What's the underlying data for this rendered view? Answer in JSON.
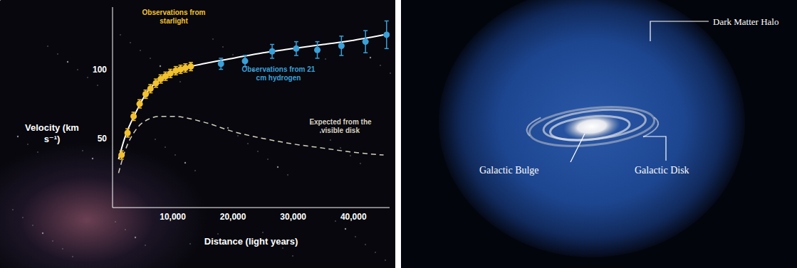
{
  "chart_data": {
    "type": "line",
    "x_label": "Distance (light years)",
    "y_label": "Velocity (km s⁻¹)",
    "xlim": [
      0,
      46000
    ],
    "xticks": [
      {
        "value": 10000,
        "label": "10,000"
      },
      {
        "value": 20000,
        "label": "20,000"
      },
      {
        "value": 30000,
        "label": "30,000"
      },
      {
        "value": 40000,
        "label": "40,000"
      }
    ],
    "ylim": [
      0,
      145
    ],
    "yticks": [
      50,
      100
    ],
    "grid": false,
    "series": [
      {
        "name": "Observations from starlight",
        "type": "scatter",
        "color": "#f2c12e",
        "x": [
          1500,
          2500,
          3500,
          4500,
          5500,
          6300,
          7200,
          8000,
          8800,
          9600,
          10500,
          11300,
          12100,
          13000
        ],
        "values": [
          38,
          54,
          66,
          75,
          82,
          86,
          90,
          93,
          95,
          97,
          99,
          100,
          101,
          102
        ],
        "errors": [
          3,
          3,
          3,
          3,
          3,
          3,
          3,
          3,
          3,
          3,
          3,
          3,
          3,
          3
        ]
      },
      {
        "name": "Observations from 21 cm hydrogen",
        "type": "scatter",
        "color": "#3aa0d8",
        "x": [
          18000,
          22000,
          26500,
          30500,
          34000,
          38000,
          42000,
          45500
        ],
        "values": [
          104,
          106,
          113,
          115,
          114,
          117,
          120,
          125
        ],
        "errors": [
          4,
          4,
          5,
          5,
          6,
          7,
          8,
          10
        ]
      },
      {
        "type": "line",
        "color": "#ffffff",
        "line_style": "solid",
        "x": [
          1000,
          2000,
          4000,
          6000,
          8000,
          10000,
          15000,
          20000,
          25000,
          30000,
          35000,
          40000,
          45000
        ],
        "values": [
          35,
          50,
          70,
          85,
          93,
          98,
          104,
          108,
          112,
          115,
          118,
          121,
          125
        ]
      },
      {
        "name": "Expected from the visible disk",
        "type": "line",
        "color": "#d6d0c0",
        "line_style": "dashed",
        "x": [
          1000,
          2000,
          4000,
          6000,
          8000,
          10000,
          15000,
          20000,
          25000,
          30000,
          35000,
          40000,
          45000
        ],
        "values": [
          25,
          40,
          57,
          64,
          66,
          66,
          62,
          55,
          50,
          46,
          43,
          40,
          38
        ]
      }
    ]
  },
  "diagram": {
    "nodes": [
      {
        "label": "Dark Matter Halo"
      },
      {
        "label": "Galactic Bulge"
      },
      {
        "label": "Galactic Disk"
      }
    ]
  }
}
